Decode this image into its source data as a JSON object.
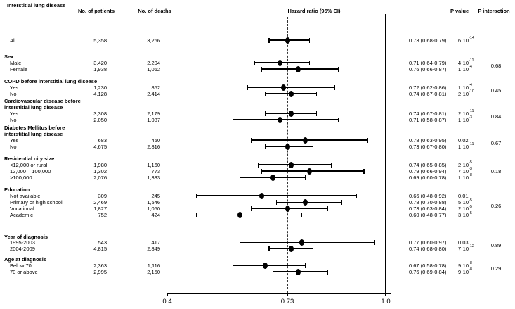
{
  "chart_data": {
    "type": "forest",
    "title": "Interstitial lung disease",
    "columns": {
      "patients": "No. of patients",
      "deaths": "No. of deaths",
      "hazard": "Hazard ratio (95% CI)",
      "p_value": "P value",
      "p_interaction": "P interaction"
    },
    "x_axis": {
      "scale": "linear",
      "min": 0.4,
      "max": 1.0,
      "reference_line": 0.73,
      "solid_line": 1.0,
      "ticks": [
        0.4,
        0.73,
        1.0
      ],
      "tick_labels": [
        "0.4",
        "0.73",
        "1.0"
      ]
    },
    "groups": [
      {
        "name_lines": [],
        "p_interaction": null,
        "rows": [
          {
            "label": "All",
            "patients": "5,358",
            "deaths": "3,266",
            "hr": 0.73,
            "ci_low": 0.68,
            "ci_high": 0.79,
            "hr_text": "0.73 (0.68-0.79)",
            "p_value": "6·10^-14"
          }
        ]
      },
      {
        "name_lines": [
          "Sex"
        ],
        "p_interaction": "0.68",
        "rows": [
          {
            "label": "Male",
            "patients": "3,420",
            "deaths": "2,204",
            "hr": 0.71,
            "ci_low": 0.64,
            "ci_high": 0.79,
            "hr_text": "0.71 (0.64-0.79)",
            "p_value": "4·10^-11"
          },
          {
            "label": "Female",
            "patients": "1,938",
            "deaths": "1,062",
            "hr": 0.76,
            "ci_low": 0.66,
            "ci_high": 0.87,
            "hr_text": "0.76 (0.66-0.87)",
            "p_value": "1·10^-4"
          }
        ]
      },
      {
        "name_lines": [
          "COPD before interstitial lung disease"
        ],
        "p_interaction": "0.45",
        "rows": [
          {
            "label": "Yes",
            "patients": "1,230",
            "deaths": "852",
            "hr": 0.72,
            "ci_low": 0.62,
            "ci_high": 0.86,
            "hr_text": "0.72 (0.62-0.86)",
            "p_value": "1·10^-4"
          },
          {
            "label": "No",
            "patients": "4,128",
            "deaths": "2,414",
            "hr": 0.74,
            "ci_low": 0.67,
            "ci_high": 0.81,
            "hr_text": "0.74 (0.67-0.81)",
            "p_value": "2·10^-10"
          }
        ]
      },
      {
        "name_lines": [
          "Cardiovascular disease before",
          "interstitial lung disease"
        ],
        "p_interaction": "0.84",
        "rows": [
          {
            "label": "Yes",
            "patients": "3,308",
            "deaths": "2,179",
            "hr": 0.74,
            "ci_low": 0.67,
            "ci_high": 0.81,
            "hr_text": "0.74 (0.67-0.81)",
            "p_value": "2·10^-11"
          },
          {
            "label": "No",
            "patients": "2,050",
            "deaths": "1,087",
            "hr": 0.71,
            "ci_low": 0.58,
            "ci_high": 0.87,
            "hr_text": "0.71 (0.58-0.87)",
            "p_value": "1·10^-3"
          }
        ]
      },
      {
        "name_lines": [
          "Diabetes Mellitus before",
          "interstitial lung disease"
        ],
        "p_interaction": "0.67",
        "rows": [
          {
            "label": "Yes",
            "patients": "683",
            "deaths": "450",
            "hr": 0.78,
            "ci_low": 0.63,
            "ci_high": 0.95,
            "hr_text": "0.78 (0.63-0.95)",
            "p_value": "0.02"
          },
          {
            "label": "No",
            "patients": "4,675",
            "deaths": "2,816",
            "hr": 0.73,
            "ci_low": 0.67,
            "ci_high": 0.8,
            "hr_text": "0.73 (0.67-0.80)",
            "p_value": "1·10^-11"
          }
        ]
      },
      {
        "name_lines": [
          "Residential city size"
        ],
        "p_interaction": "0.18",
        "rows": [
          {
            "label": "<12,000 or rural",
            "patients": "1,980",
            "deaths": "1,160",
            "hr": 0.74,
            "ci_low": 0.65,
            "ci_high": 0.85,
            "hr_text": "0.74 (0.65-0.85)",
            "p_value": "2·10^-5"
          },
          {
            "label": "12,000 – 100,000",
            "patients": "1,302",
            "deaths": "773",
            "hr": 0.79,
            "ci_low": 0.66,
            "ci_high": 0.94,
            "hr_text": "0.79 (0.66-0.94)",
            "p_value": "7·10^-3"
          },
          {
            "label": ">100,000",
            "patients": "2,076",
            "deaths": "1,333",
            "hr": 0.69,
            "ci_low": 0.6,
            "ci_high": 0.78,
            "hr_text": "0.69 (0.60-0.78)",
            "p_value": "1·10^-8"
          }
        ]
      },
      {
        "name_lines": [
          "Education"
        ],
        "p_interaction": "0.26",
        "rows": [
          {
            "label": "Not available",
            "patients": "309",
            "deaths": "245",
            "hr": 0.66,
            "ci_low": 0.48,
            "ci_high": 0.92,
            "hr_text": "0.66 (0.48-0.92)",
            "p_value": "0.01"
          },
          {
            "label": "Primary or high school",
            "patients": "2,469",
            "deaths": "1,546",
            "hr": 0.78,
            "ci_low": 0.7,
            "ci_high": 0.88,
            "hr_text": "0.78 (0.70-0.88)",
            "p_value": "5·10^-5"
          },
          {
            "label": "Vocational",
            "patients": "1,827",
            "deaths": "1,050",
            "hr": 0.73,
            "ci_low": 0.63,
            "ci_high": 0.84,
            "hr_text": "0.73 (0.63-0.84)",
            "p_value": "2·10^-5"
          },
          {
            "label": "Academic",
            "patients": "752",
            "deaths": "424",
            "hr": 0.6,
            "ci_low": 0.48,
            "ci_high": 0.77,
            "hr_text": "0.60 (0.48-0.77)",
            "p_value": "3·10^-5"
          }
        ]
      },
      {
        "name_lines": [
          "Year of diagnosis"
        ],
        "p_interaction": "0.89",
        "rows": [
          {
            "label": "1995-2003",
            "patients": "543",
            "deaths": "417",
            "hr": 0.77,
            "ci_low": 0.6,
            "ci_high": 0.97,
            "hr_text": "0.77 (0.60-0.97)",
            "p_value": "0.03"
          },
          {
            "label": "2004-2009",
            "patients": "4,815",
            "deaths": "2,849",
            "hr": 0.74,
            "ci_low": 0.68,
            "ci_high": 0.8,
            "hr_text": "0.74 (0.68-0.80)",
            "p_value": "7·10^-12"
          }
        ]
      },
      {
        "name_lines": [
          "Age at diagnosis"
        ],
        "p_interaction": "0.29",
        "rows": [
          {
            "label": "Below 70",
            "patients": "2,363",
            "deaths": "1,116",
            "hr": 0.67,
            "ci_low": 0.58,
            "ci_high": 0.78,
            "hr_text": "0.67 (0.58-0.78)",
            "p_value": "9·10^-8"
          },
          {
            "label": "70 or above",
            "patients": "2,995",
            "deaths": "2,150",
            "hr": 0.76,
            "ci_low": 0.69,
            "ci_high": 0.84,
            "hr_text": "0.76 (0.69-0.84)",
            "p_value": "9·10^-8"
          }
        ]
      }
    ]
  }
}
